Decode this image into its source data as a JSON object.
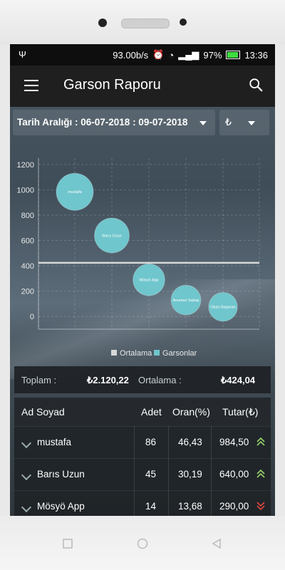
{
  "status": {
    "speed": "93.00b/s",
    "battery": "97%",
    "time": "13:36"
  },
  "appbar": {
    "title": "Garson Raporu"
  },
  "filter": {
    "date_label": "Tarih Aralığı : 06-07-2018 : 09-07-2018",
    "currency": "₺"
  },
  "chart_data": {
    "type": "scatter",
    "title": "",
    "xlabel": "",
    "ylabel": "",
    "ylim": [
      -100,
      1250
    ],
    "yticks": [
      "1200",
      "1000",
      "800",
      "600",
      "400",
      "200",
      "0"
    ],
    "average_line": 424.04,
    "legend": [
      "Ortalama",
      "Garsonlar"
    ],
    "legend_position": "bottom",
    "series": [
      {
        "name": "Garsonlar",
        "points": [
          {
            "label": "mustafa",
            "value": 984.5
          },
          {
            "label": "Barıs Uzun",
            "value": 640.0
          },
          {
            "label": "Mösyö App",
            "value": 290.0
          },
          {
            "label": "Asuman Sabaç",
            "value": 130.0
          },
          {
            "label": "Okan Başaran",
            "value": 76.0
          }
        ]
      }
    ]
  },
  "summary": {
    "total_label": "Toplam :",
    "total_value": "₺2.120,22",
    "avg_label": "Ortalama :",
    "avg_value": "₺424,04"
  },
  "table": {
    "headers": [
      "Ad Soyad",
      "Adet",
      "Oran(%)",
      "Tutar(₺)"
    ],
    "rows": [
      {
        "name": "mustafa",
        "count": "86",
        "ratio": "46,43",
        "amount": "984,50",
        "trend": "up"
      },
      {
        "name": "Barıs Uzun",
        "count": "45",
        "ratio": "30,19",
        "amount": "640,00",
        "trend": "up"
      },
      {
        "name": "Mösyö App",
        "count": "14",
        "ratio": "13,68",
        "amount": "290,00",
        "trend": "down"
      }
    ]
  },
  "colors": {
    "bubble": "#6fc6cc",
    "up": "#9bd36a",
    "down": "#e0453f",
    "legend_avg": "#d8d8d8",
    "legend_garson": "#6fc6cc"
  }
}
